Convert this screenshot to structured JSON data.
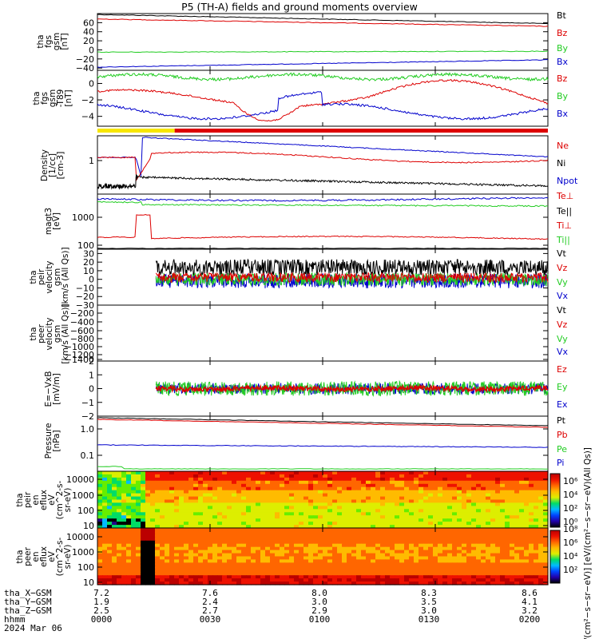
{
  "title": "P5 (TH-A) fields and ground moments overview",
  "colors": {
    "black": "#000000",
    "red": "#dd0000",
    "green": "#22cc22",
    "blue": "#0000cc",
    "yellow": "#f7e600"
  },
  "chart_data": [
    {
      "type": "line",
      "panel": "fgs_gsm",
      "ylabel": [
        "tha",
        "fgs",
        "gsm",
        "[nT]"
      ],
      "yticks": [
        "60",
        "40",
        "20",
        "0",
        "−20",
        "−40"
      ],
      "ylim": [
        -45,
        80
      ],
      "legend": [
        "Bt",
        "Bz",
        "By",
        "Bx"
      ],
      "series": [
        {
          "name": "Bt",
          "start": 78,
          "end": 58
        },
        {
          "name": "Bz",
          "start": 68,
          "end": 52
        },
        {
          "name": "By",
          "start": -5,
          "end": -3
        },
        {
          "name": "Bx",
          "start": -38,
          "end": -22
        }
      ]
    },
    {
      "type": "line",
      "panel": "fgs_gsm_dtrend",
      "ylabel": [
        "tha",
        "fgs",
        "gsm",
        "-T89",
        "[nT]"
      ],
      "yticks": [
        "0",
        "−2",
        "−4"
      ],
      "ylim": [
        -5.2,
        1.6
      ],
      "legend": [
        "Bz",
        "By",
        "Bx"
      ]
    },
    {
      "type": "bar",
      "panel": "mode_bar",
      "segments": [
        {
          "color": "yellow",
          "from": 7.2,
          "to": 7.44
        },
        {
          "color": "red",
          "from": 7.44,
          "to": 8.6
        }
      ]
    },
    {
      "type": "line",
      "panel": "density",
      "ylabel": [
        "Density",
        "[1/cc]",
        "[cm-3]"
      ],
      "yticks": [
        "1"
      ],
      "legend": [
        "Ne",
        "Ni",
        "Npot"
      ]
    },
    {
      "type": "line",
      "panel": "temperature",
      "ylabel": [
        "magt3",
        "[eV]"
      ],
      "yticks": [
        "1000",
        "100"
      ],
      "legend": [
        "Te⊥",
        "Te||",
        "Ti⊥",
        "Ti||"
      ]
    },
    {
      "type": "line",
      "panel": "peir_velocity",
      "ylabel": [
        "tha",
        "peir",
        "velocity",
        "gsm",
        "[km/s (All Qs)]"
      ],
      "yticks": [
        "30",
        "20",
        "10",
        "0",
        "−10",
        "−20",
        "−30"
      ],
      "ylim": [
        -30,
        35
      ],
      "legend": [
        "Vt",
        "Vz",
        "Vy",
        "Vx"
      ]
    },
    {
      "type": "line",
      "panel": "peer_velocity",
      "ylabel": [
        "tha",
        "peer",
        "velocity",
        "gsm",
        "[km/s (All Qs)]"
      ],
      "yticks": [
        "−200",
        "−400",
        "−600",
        "−800",
        "−1000",
        "−1200",
        "−1400"
      ],
      "legend": [
        "Vt",
        "Vz",
        "Vy",
        "Vx"
      ]
    },
    {
      "type": "line",
      "panel": "efield",
      "ylabel": [
        "E=−VxB",
        "[mV/m]"
      ],
      "yticks": [
        "2",
        "1",
        "0",
        "−1",
        "−2"
      ],
      "ylim": [
        -2,
        2
      ],
      "legend": [
        "Ez",
        "Ey",
        "Ex"
      ]
    },
    {
      "type": "line",
      "panel": "pressure",
      "ylabel": [
        "Pressure",
        "[nPa]"
      ],
      "yticks": [
        "1.0",
        "0.1"
      ],
      "legend": [
        "Pt",
        "Pb",
        "Pe",
        "Pi"
      ]
    },
    {
      "type": "heatmap",
      "panel": "peir_eflux",
      "ylabel": [
        "tha",
        "peir",
        "en",
        "eflux",
        "eV",
        "(cm^2-s-",
        "sr-eV)"
      ],
      "yticks": [
        "10000",
        "1000",
        "100",
        "10"
      ]
    },
    {
      "type": "heatmap",
      "panel": "peer_eflux",
      "ylabel": [
        "tha",
        "peer",
        "en",
        "eflux",
        "eV",
        "(cm^2-s-",
        "sr-eV)"
      ],
      "yticks": [
        "10000",
        "1000",
        "100",
        "10"
      ]
    }
  ],
  "colorbar": {
    "ticks_top": [
      "10⁶",
      "10⁴",
      "10²",
      "10⁰"
    ],
    "ticks_bottom": [
      "10⁸",
      "10⁶",
      "10⁴",
      "10²"
    ],
    "label": "[eV/(cm²−s−sr−eV)] [eV/(cm²−s−sr−eV)(All Qs)]"
  },
  "xaxis": {
    "rows": [
      {
        "label": "tha_X−GSM",
        "values": [
          "7.2",
          "7.6",
          "8.0",
          "8.3",
          "8.6"
        ]
      },
      {
        "label": "tha_Y−GSM",
        "values": [
          "1.9",
          "2.4",
          "3.0",
          "3.5",
          "4.1"
        ]
      },
      {
        "label": "tha_Z−GSM",
        "values": [
          "2.5",
          "2.7",
          "2.9",
          "3.0",
          "3.2"
        ]
      },
      {
        "label": "hhmm",
        "values": [
          "0000",
          "0030",
          "0100",
          "0130",
          "0200"
        ]
      }
    ],
    "date": "2024 Mar 06"
  }
}
